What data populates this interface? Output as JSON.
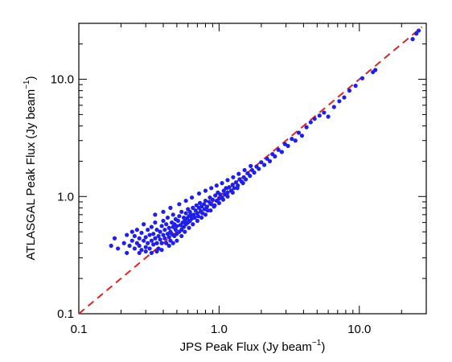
{
  "chart_data": {
    "type": "scatter",
    "title": "",
    "xlabel": "JPS Peak Flux (Jy beam",
    "xlabel_sup": "−1",
    "xlabel_end": ")",
    "ylabel": "ATLASGAL Peak Flux (Jy beam",
    "ylabel_sup": "−1",
    "ylabel_end": ")",
    "xscale": "log",
    "yscale": "log",
    "xlim": [
      0.1,
      30
    ],
    "ylim": [
      0.1,
      30
    ],
    "xticks": [
      {
        "value": 0.1,
        "label": "0.1"
      },
      {
        "value": 1.0,
        "label": "1.0"
      },
      {
        "value": 10.0,
        "label": "10.0"
      }
    ],
    "yticks": [
      {
        "value": 0.1,
        "label": "0.1"
      },
      {
        "value": 1.0,
        "label": "1.0"
      },
      {
        "value": 10.0,
        "label": "10.0"
      }
    ],
    "grid": false,
    "legend": "none",
    "colors": {
      "points": "#1f1fe6",
      "reference_line": "#d62728",
      "axes": "#000000"
    },
    "reference_line": {
      "style": "dashed",
      "slope": 1,
      "intercept": 0,
      "from": [
        0.1,
        0.1
      ],
      "to": [
        28,
        28
      ]
    },
    "series": [
      {
        "values_xy": [
          [
            0.17,
            0.38
          ],
          [
            0.18,
            0.44
          ],
          [
            0.19,
            0.36
          ],
          [
            0.21,
            0.4
          ],
          [
            0.22,
            0.47
          ],
          [
            0.23,
            0.38
          ],
          [
            0.24,
            0.42
          ],
          [
            0.24,
            0.5
          ],
          [
            0.25,
            0.36
          ],
          [
            0.25,
            0.46
          ],
          [
            0.26,
            0.4
          ],
          [
            0.26,
            0.52
          ],
          [
            0.27,
            0.38
          ],
          [
            0.27,
            0.44
          ],
          [
            0.28,
            0.35
          ],
          [
            0.28,
            0.49
          ],
          [
            0.29,
            0.42
          ],
          [
            0.29,
            0.58
          ],
          [
            0.3,
            0.37
          ],
          [
            0.3,
            0.45
          ],
          [
            0.31,
            0.4
          ],
          [
            0.31,
            0.52
          ],
          [
            0.32,
            0.36
          ],
          [
            0.32,
            0.47
          ],
          [
            0.33,
            0.42
          ],
          [
            0.33,
            0.55
          ],
          [
            0.34,
            0.39
          ],
          [
            0.34,
            0.48
          ],
          [
            0.35,
            0.44
          ],
          [
            0.35,
            0.6
          ],
          [
            0.36,
            0.4
          ],
          [
            0.36,
            0.52
          ],
          [
            0.37,
            0.46
          ],
          [
            0.37,
            0.36
          ],
          [
            0.38,
            0.5
          ],
          [
            0.38,
            0.43
          ],
          [
            0.39,
            0.56
          ],
          [
            0.39,
            0.4
          ],
          [
            0.4,
            0.47
          ],
          [
            0.4,
            0.62
          ],
          [
            0.41,
            0.44
          ],
          [
            0.41,
            0.52
          ],
          [
            0.42,
            0.4
          ],
          [
            0.42,
            0.58
          ],
          [
            0.43,
            0.48
          ],
          [
            0.43,
            0.66
          ],
          [
            0.44,
            0.45
          ],
          [
            0.44,
            0.54
          ],
          [
            0.45,
            0.5
          ],
          [
            0.45,
            0.42
          ],
          [
            0.46,
            0.6
          ],
          [
            0.46,
            0.48
          ],
          [
            0.47,
            0.55
          ],
          [
            0.47,
            0.7
          ],
          [
            0.48,
            0.46
          ],
          [
            0.48,
            0.58
          ],
          [
            0.49,
            0.52
          ],
          [
            0.49,
            0.64
          ],
          [
            0.5,
            0.48
          ],
          [
            0.5,
            0.56
          ],
          [
            0.51,
            0.62
          ],
          [
            0.52,
            0.5
          ],
          [
            0.52,
            0.68
          ],
          [
            0.53,
            0.57
          ],
          [
            0.54,
            0.52
          ],
          [
            0.54,
            0.74
          ],
          [
            0.55,
            0.6
          ],
          [
            0.56,
            0.55
          ],
          [
            0.56,
            0.66
          ],
          [
            0.57,
            0.62
          ],
          [
            0.58,
            0.58
          ],
          [
            0.58,
            0.72
          ],
          [
            0.59,
            0.65
          ],
          [
            0.6,
            0.6
          ],
          [
            0.6,
            0.78
          ],
          [
            0.61,
            0.68
          ],
          [
            0.62,
            0.62
          ],
          [
            0.62,
            0.74
          ],
          [
            0.63,
            0.7
          ],
          [
            0.64,
            0.65
          ],
          [
            0.65,
            0.8
          ],
          [
            0.66,
            0.7
          ],
          [
            0.67,
            0.66
          ],
          [
            0.68,
            0.76
          ],
          [
            0.69,
            0.84
          ],
          [
            0.7,
            0.72
          ],
          [
            0.71,
            0.68
          ],
          [
            0.72,
            0.8
          ],
          [
            0.73,
            0.88
          ],
          [
            0.74,
            0.75
          ],
          [
            0.75,
            0.82
          ],
          [
            0.76,
            0.72
          ],
          [
            0.78,
            0.86
          ],
          [
            0.79,
            0.78
          ],
          [
            0.8,
            0.92
          ],
          [
            0.82,
            0.82
          ],
          [
            0.83,
            0.76
          ],
          [
            0.85,
            0.9
          ],
          [
            0.86,
            0.98
          ],
          [
            0.88,
            0.86
          ],
          [
            0.9,
            0.94
          ],
          [
            0.92,
            0.82
          ],
          [
            0.94,
            1.02
          ],
          [
            0.96,
            0.92
          ],
          [
            0.98,
            1.08
          ],
          [
            1.0,
            0.96
          ],
          [
            1.02,
            1.04
          ],
          [
            1.05,
            0.98
          ],
          [
            1.08,
            1.12
          ],
          [
            1.1,
            1.04
          ],
          [
            1.12,
            1.18
          ],
          [
            1.15,
            1.08
          ],
          [
            1.18,
            1.2
          ],
          [
            1.22,
            1.12
          ],
          [
            1.25,
            1.26
          ],
          [
            1.28,
            1.18
          ],
          [
            1.32,
            1.32
          ],
          [
            1.36,
            1.24
          ],
          [
            1.4,
            1.4
          ],
          [
            1.45,
            1.34
          ],
          [
            1.5,
            1.46
          ],
          [
            1.55,
            1.4
          ],
          [
            1.6,
            1.58
          ],
          [
            1.66,
            1.5
          ],
          [
            1.72,
            1.68
          ],
          [
            1.78,
            1.6
          ],
          [
            1.85,
            1.8
          ],
          [
            1.92,
            1.72
          ],
          [
            2.0,
            1.96
          ],
          [
            2.1,
            1.86
          ],
          [
            2.2,
            2.1
          ],
          [
            2.3,
            2.0
          ],
          [
            2.4,
            2.3
          ],
          [
            2.5,
            2.2
          ],
          [
            2.65,
            2.5
          ],
          [
            2.8,
            2.4
          ],
          [
            2.95,
            2.8
          ],
          [
            3.1,
            2.7
          ],
          [
            3.3,
            3.1
          ],
          [
            3.5,
            3.0
          ],
          [
            3.7,
            3.5
          ],
          [
            3.9,
            3.3
          ],
          [
            4.2,
            3.9
          ],
          [
            4.5,
            4.3
          ],
          [
            4.8,
            4.6
          ],
          [
            5.2,
            4.9
          ],
          [
            5.6,
            5.2
          ],
          [
            6.0,
            4.8
          ],
          [
            6.6,
            5.8
          ],
          [
            7.2,
            6.5
          ],
          [
            7.8,
            7.0
          ],
          [
            8.5,
            8.0
          ],
          [
            9.4,
            8.8
          ],
          [
            10.5,
            10.2
          ],
          [
            12.5,
            11.5
          ],
          [
            13.0,
            12.0
          ],
          [
            24.0,
            22.0
          ],
          [
            25.5,
            24.5
          ],
          [
            26.5,
            26.0
          ],
          [
            0.22,
            0.33
          ],
          [
            0.27,
            0.33
          ],
          [
            0.3,
            0.34
          ],
          [
            0.33,
            0.33
          ],
          [
            0.36,
            0.34
          ],
          [
            0.39,
            0.35
          ],
          [
            0.44,
            0.38
          ],
          [
            0.47,
            0.4
          ],
          [
            0.5,
            0.42
          ],
          [
            0.54,
            0.46
          ],
          [
            0.57,
            0.5
          ],
          [
            0.61,
            0.54
          ],
          [
            0.65,
            0.58
          ],
          [
            0.7,
            0.62
          ],
          [
            0.75,
            0.66
          ],
          [
            0.8,
            0.7
          ],
          [
            0.87,
            0.76
          ],
          [
            0.93,
            0.84
          ],
          [
            1.0,
            0.88
          ],
          [
            1.07,
            0.94
          ],
          [
            1.15,
            1.0
          ],
          [
            1.25,
            1.08
          ],
          [
            1.35,
            1.18
          ],
          [
            1.48,
            1.3
          ],
          [
            0.35,
            0.7
          ],
          [
            0.4,
            0.74
          ],
          [
            0.45,
            0.8
          ],
          [
            0.52,
            0.86
          ],
          [
            0.58,
            0.92
          ],
          [
            0.64,
            0.98
          ],
          [
            0.72,
            1.06
          ],
          [
            0.8,
            1.12
          ],
          [
            0.88,
            1.18
          ],
          [
            0.96,
            1.24
          ],
          [
            1.05,
            1.3
          ],
          [
            1.15,
            1.38
          ],
          [
            1.26,
            1.46
          ],
          [
            1.38,
            1.56
          ],
          [
            1.52,
            1.68
          ],
          [
            1.68,
            1.82
          ]
        ]
      }
    ]
  }
}
